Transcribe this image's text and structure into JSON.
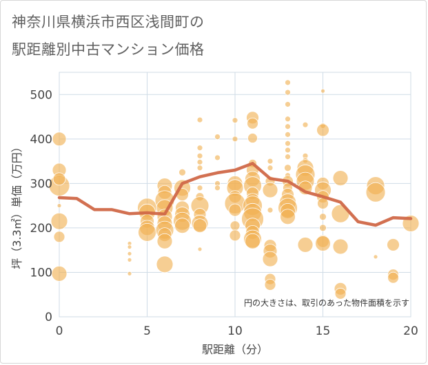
{
  "title_line1": "神奈川県横浜市西区浅間町の",
  "title_line2": "駅距離別中古マンション価格",
  "chart_data": {
    "type": "scatter",
    "xlabel": "駅距離（分）",
    "ylabel": "坪（3.3㎡）単価（万円）",
    "xlim": [
      0,
      20
    ],
    "ylim": [
      0,
      550
    ],
    "xticks": [
      "0",
      "5",
      "10",
      "15",
      "20"
    ],
    "yticks": [
      "0",
      "100",
      "200",
      "300",
      "400",
      "500"
    ],
    "grid": true,
    "note": "円の大きさは、取引のあった物件面積を示す",
    "colors": {
      "bubble": "#f0b050",
      "line": "#d06848",
      "grid": "#cfdbe6"
    },
    "line_series": {
      "x": [
        0,
        1,
        2,
        3,
        4,
        5,
        6,
        7,
        8,
        9,
        10,
        11,
        12,
        13,
        14,
        15,
        16,
        17,
        18,
        19,
        20
      ],
      "y": [
        268,
        266,
        241,
        241,
        232,
        234,
        231,
        300,
        315,
        324,
        330,
        345,
        311,
        305,
        281,
        270,
        258,
        214,
        206,
        223,
        221
      ]
    },
    "bubbles": [
      {
        "x": 0,
        "y": 400,
        "s": 10
      },
      {
        "x": 0,
        "y": 330,
        "s": 10
      },
      {
        "x": 0,
        "y": 295,
        "s": 15
      },
      {
        "x": 0,
        "y": 310,
        "s": 9
      },
      {
        "x": 0,
        "y": 250,
        "s": 3
      },
      {
        "x": 0,
        "y": 215,
        "s": 12
      },
      {
        "x": 0,
        "y": 180,
        "s": 8
      },
      {
        "x": 0,
        "y": 97,
        "s": 11
      },
      {
        "x": 4,
        "y": 165,
        "s": 3
      },
      {
        "x": 4,
        "y": 157,
        "s": 3
      },
      {
        "x": 4,
        "y": 142,
        "s": 3
      },
      {
        "x": 4,
        "y": 128,
        "s": 3
      },
      {
        "x": 4,
        "y": 97,
        "s": 3
      },
      {
        "x": 5,
        "y": 245,
        "s": 14
      },
      {
        "x": 5,
        "y": 235,
        "s": 12
      },
      {
        "x": 5,
        "y": 215,
        "s": 10
      },
      {
        "x": 5,
        "y": 200,
        "s": 11
      },
      {
        "x": 5,
        "y": 190,
        "s": 13
      },
      {
        "x": 6,
        "y": 295,
        "s": 11
      },
      {
        "x": 6,
        "y": 280,
        "s": 10
      },
      {
        "x": 6,
        "y": 262,
        "s": 14
      },
      {
        "x": 6,
        "y": 245,
        "s": 12
      },
      {
        "x": 6,
        "y": 225,
        "s": 11
      },
      {
        "x": 6,
        "y": 210,
        "s": 11
      },
      {
        "x": 6,
        "y": 195,
        "s": 13
      },
      {
        "x": 6,
        "y": 185,
        "s": 10
      },
      {
        "x": 6,
        "y": 170,
        "s": 11
      },
      {
        "x": 6,
        "y": 118,
        "s": 12
      },
      {
        "x": 7,
        "y": 325,
        "s": 5
      },
      {
        "x": 7,
        "y": 290,
        "s": 12
      },
      {
        "x": 7,
        "y": 275,
        "s": 9
      },
      {
        "x": 7,
        "y": 245,
        "s": 10
      },
      {
        "x": 7,
        "y": 230,
        "s": 11
      },
      {
        "x": 7,
        "y": 215,
        "s": 13
      },
      {
        "x": 7,
        "y": 205,
        "s": 11
      },
      {
        "x": 8,
        "y": 443,
        "s": 4
      },
      {
        "x": 8,
        "y": 380,
        "s": 4
      },
      {
        "x": 8,
        "y": 362,
        "s": 4
      },
      {
        "x": 8,
        "y": 348,
        "s": 4
      },
      {
        "x": 8,
        "y": 335,
        "s": 4
      },
      {
        "x": 8,
        "y": 290,
        "s": 4
      },
      {
        "x": 8,
        "y": 270,
        "s": 6
      },
      {
        "x": 8,
        "y": 250,
        "s": 13
      },
      {
        "x": 8,
        "y": 230,
        "s": 9
      },
      {
        "x": 8,
        "y": 210,
        "s": 12
      },
      {
        "x": 8,
        "y": 205,
        "s": 10
      },
      {
        "x": 8,
        "y": 152,
        "s": 3
      },
      {
        "x": 9,
        "y": 405,
        "s": 4
      },
      {
        "x": 9,
        "y": 358,
        "s": 4
      },
      {
        "x": 9,
        "y": 300,
        "s": 4
      },
      {
        "x": 9,
        "y": 290,
        "s": 4
      },
      {
        "x": 10,
        "y": 442,
        "s": 4
      },
      {
        "x": 10,
        "y": 400,
        "s": 4
      },
      {
        "x": 10,
        "y": 300,
        "s": 11
      },
      {
        "x": 10,
        "y": 290,
        "s": 12
      },
      {
        "x": 10,
        "y": 270,
        "s": 9
      },
      {
        "x": 10,
        "y": 255,
        "s": 15
      },
      {
        "x": 10,
        "y": 240,
        "s": 9
      },
      {
        "x": 10,
        "y": 205,
        "s": 7
      },
      {
        "x": 10,
        "y": 183,
        "s": 8
      },
      {
        "x": 11,
        "y": 448,
        "s": 9
      },
      {
        "x": 11,
        "y": 435,
        "s": 8
      },
      {
        "x": 11,
        "y": 402,
        "s": 7
      },
      {
        "x": 11,
        "y": 345,
        "s": 6
      },
      {
        "x": 11,
        "y": 330,
        "s": 9
      },
      {
        "x": 11,
        "y": 310,
        "s": 11
      },
      {
        "x": 11,
        "y": 295,
        "s": 13
      },
      {
        "x": 11,
        "y": 278,
        "s": 9
      },
      {
        "x": 11,
        "y": 262,
        "s": 10
      },
      {
        "x": 11,
        "y": 250,
        "s": 14
      },
      {
        "x": 11,
        "y": 235,
        "s": 13
      },
      {
        "x": 11,
        "y": 220,
        "s": 16
      },
      {
        "x": 11,
        "y": 205,
        "s": 11
      },
      {
        "x": 11,
        "y": 190,
        "s": 10
      },
      {
        "x": 11,
        "y": 175,
        "s": 13
      },
      {
        "x": 11,
        "y": 170,
        "s": 11
      },
      {
        "x": 12,
        "y": 350,
        "s": 4
      },
      {
        "x": 12,
        "y": 335,
        "s": 4
      },
      {
        "x": 12,
        "y": 305,
        "s": 7
      },
      {
        "x": 12,
        "y": 285,
        "s": 11
      },
      {
        "x": 12,
        "y": 240,
        "s": 4
      },
      {
        "x": 12,
        "y": 160,
        "s": 9
      },
      {
        "x": 12,
        "y": 148,
        "s": 10
      },
      {
        "x": 12,
        "y": 130,
        "s": 11
      },
      {
        "x": 12,
        "y": 85,
        "s": 8
      },
      {
        "x": 12,
        "y": 72,
        "s": 8
      },
      {
        "x": 13,
        "y": 527,
        "s": 4
      },
      {
        "x": 13,
        "y": 505,
        "s": 4
      },
      {
        "x": 13,
        "y": 478,
        "s": 4
      },
      {
        "x": 13,
        "y": 445,
        "s": 4
      },
      {
        "x": 13,
        "y": 428,
        "s": 4
      },
      {
        "x": 13,
        "y": 410,
        "s": 4
      },
      {
        "x": 13,
        "y": 390,
        "s": 4
      },
      {
        "x": 13,
        "y": 375,
        "s": 4
      },
      {
        "x": 13,
        "y": 360,
        "s": 4
      },
      {
        "x": 13,
        "y": 335,
        "s": 5
      },
      {
        "x": 13,
        "y": 318,
        "s": 4
      },
      {
        "x": 13,
        "y": 305,
        "s": 8
      },
      {
        "x": 13,
        "y": 290,
        "s": 7
      },
      {
        "x": 13,
        "y": 275,
        "s": 9
      },
      {
        "x": 13,
        "y": 258,
        "s": 12
      },
      {
        "x": 13,
        "y": 245,
        "s": 14
      },
      {
        "x": 13,
        "y": 238,
        "s": 11
      },
      {
        "x": 13,
        "y": 225,
        "s": 11
      },
      {
        "x": 14,
        "y": 432,
        "s": 4
      },
      {
        "x": 14,
        "y": 362,
        "s": 4
      },
      {
        "x": 14,
        "y": 352,
        "s": 4
      },
      {
        "x": 14,
        "y": 335,
        "s": 12
      },
      {
        "x": 14,
        "y": 320,
        "s": 14
      },
      {
        "x": 14,
        "y": 305,
        "s": 13
      },
      {
        "x": 14,
        "y": 290,
        "s": 10
      },
      {
        "x": 14,
        "y": 162,
        "s": 11
      },
      {
        "x": 15,
        "y": 508,
        "s": 3
      },
      {
        "x": 15,
        "y": 430,
        "s": 4
      },
      {
        "x": 15,
        "y": 420,
        "s": 9
      },
      {
        "x": 15,
        "y": 300,
        "s": 9
      },
      {
        "x": 15,
        "y": 285,
        "s": 12
      },
      {
        "x": 15,
        "y": 270,
        "s": 9
      },
      {
        "x": 15,
        "y": 255,
        "s": 8
      },
      {
        "x": 15,
        "y": 225,
        "s": 5
      },
      {
        "x": 15,
        "y": 200,
        "s": 5
      },
      {
        "x": 15,
        "y": 170,
        "s": 9
      },
      {
        "x": 15,
        "y": 165,
        "s": 11
      },
      {
        "x": 16,
        "y": 312,
        "s": 11
      },
      {
        "x": 16,
        "y": 232,
        "s": 13
      },
      {
        "x": 16,
        "y": 158,
        "s": 11
      },
      {
        "x": 16,
        "y": 63,
        "s": 9
      },
      {
        "x": 16,
        "y": 52,
        "s": 8
      },
      {
        "x": 18,
        "y": 295,
        "s": 13
      },
      {
        "x": 18,
        "y": 280,
        "s": 14
      },
      {
        "x": 18,
        "y": 135,
        "s": 3
      },
      {
        "x": 19,
        "y": 162,
        "s": 9
      },
      {
        "x": 19,
        "y": 95,
        "s": 8
      },
      {
        "x": 19,
        "y": 88,
        "s": 8
      },
      {
        "x": 20,
        "y": 210,
        "s": 12
      }
    ]
  }
}
